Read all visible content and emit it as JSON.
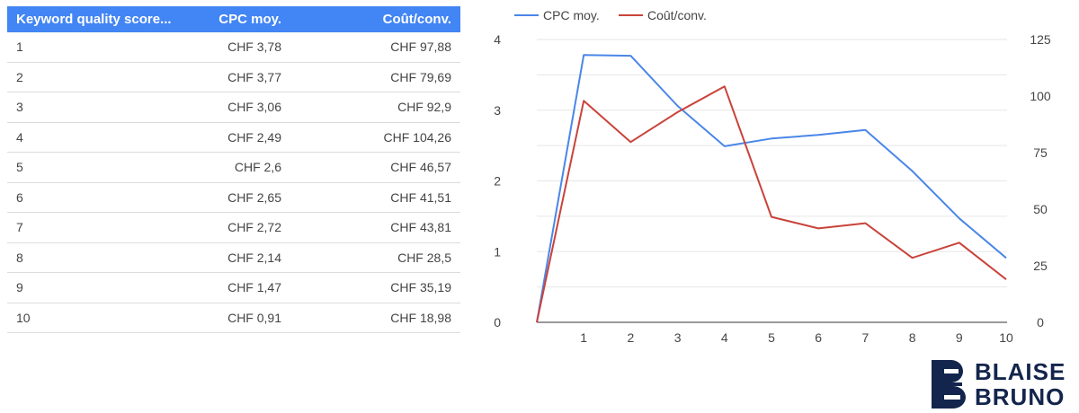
{
  "table": {
    "headers": [
      "Keyword quality score...",
      "CPC moy.",
      "Coût/conv."
    ],
    "rows": [
      [
        "1",
        "CHF 3,78",
        "CHF 97,88"
      ],
      [
        "2",
        "CHF 3,77",
        "CHF 79,69"
      ],
      [
        "3",
        "CHF 3,06",
        "CHF 92,9"
      ],
      [
        "4",
        "CHF 2,49",
        "CHF 104,26"
      ],
      [
        "5",
        "CHF 2,6",
        "CHF 46,57"
      ],
      [
        "6",
        "CHF 2,65",
        "CHF 41,51"
      ],
      [
        "7",
        "CHF 2,72",
        "CHF 43,81"
      ],
      [
        "8",
        "CHF 2,14",
        "CHF 28,5"
      ],
      [
        "9",
        "CHF 1,47",
        "CHF 35,19"
      ],
      [
        "10",
        "CHF 0,91",
        "CHF 18,98"
      ]
    ]
  },
  "chart_data": {
    "type": "line",
    "x": [
      0,
      1,
      2,
      3,
      4,
      5,
      6,
      7,
      8,
      9,
      10
    ],
    "x_tick_labels": [
      "1",
      "2",
      "3",
      "4",
      "5",
      "6",
      "7",
      "8",
      "9",
      "10"
    ],
    "series": [
      {
        "name": "CPC moy.",
        "axis": "left",
        "color": "#4a86e8",
        "values": [
          0,
          3.78,
          3.77,
          3.06,
          2.49,
          2.6,
          2.65,
          2.72,
          2.14,
          1.47,
          0.91
        ]
      },
      {
        "name": "Coût/conv.",
        "axis": "right",
        "color": "#c9433a",
        "values": [
          0,
          97.88,
          79.69,
          92.9,
          104.26,
          46.57,
          41.51,
          43.81,
          28.5,
          35.19,
          18.98
        ]
      }
    ],
    "y_left": {
      "ticks": [
        "0",
        "1",
        "2",
        "3",
        "4"
      ],
      "range": [
        0,
        4
      ]
    },
    "y_right": {
      "ticks": [
        "0",
        "25",
        "50",
        "75",
        "100",
        "125"
      ],
      "range": [
        0,
        125
      ]
    },
    "grid": true,
    "legend_position": "top-left"
  },
  "logo": {
    "line1": "BLAISE",
    "line2": "BRUNO",
    "color": "#13254c"
  }
}
